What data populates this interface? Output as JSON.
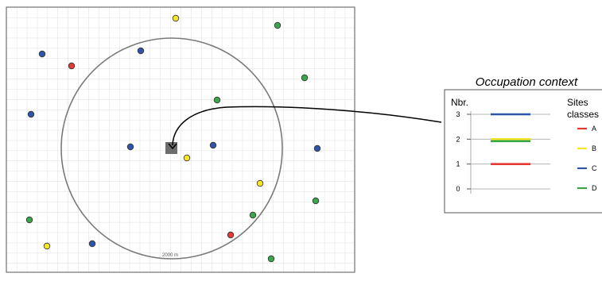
{
  "map": {
    "scale_label": "2000 m",
    "colors": {
      "A": "#e53935",
      "B": "#f5e62a",
      "C": "#2e55a8",
      "D": "#3aa64a"
    },
    "sites": [
      {
        "cls": "B"
      },
      {
        "cls": "D"
      },
      {
        "cls": "C"
      },
      {
        "cls": "A"
      },
      {
        "cls": "C"
      },
      {
        "cls": "D"
      },
      {
        "cls": "D"
      },
      {
        "cls": "C"
      },
      {
        "cls": "C"
      },
      {
        "cls": "C"
      },
      {
        "cls": "B"
      },
      {
        "cls": "C"
      },
      {
        "cls": "B"
      },
      {
        "cls": "D"
      },
      {
        "cls": "D"
      },
      {
        "cls": "D"
      },
      {
        "cls": "A"
      },
      {
        "cls": "B"
      },
      {
        "cls": "C"
      },
      {
        "cls": "D"
      }
    ]
  },
  "context_panel": {
    "title": "Occupation context",
    "y_label": "Nbr.",
    "legend_title_1": "Sites",
    "legend_title_2": "classes :",
    "y_ticks": [
      "3",
      "2",
      "1",
      "0"
    ],
    "legend": [
      {
        "label": "A",
        "color": "#e53935"
      },
      {
        "label": "B",
        "color": "#f5e62a"
      },
      {
        "label": "C",
        "color": "#2e55a8"
      },
      {
        "label": "D",
        "color": "#3aa64a"
      }
    ]
  },
  "chart_data": {
    "type": "bar",
    "title": "Occupation context",
    "ylabel": "Nbr.",
    "categories": [
      "A",
      "B",
      "C",
      "D"
    ],
    "values": [
      1,
      2,
      3,
      2
    ],
    "ylim": [
      0,
      3
    ]
  }
}
